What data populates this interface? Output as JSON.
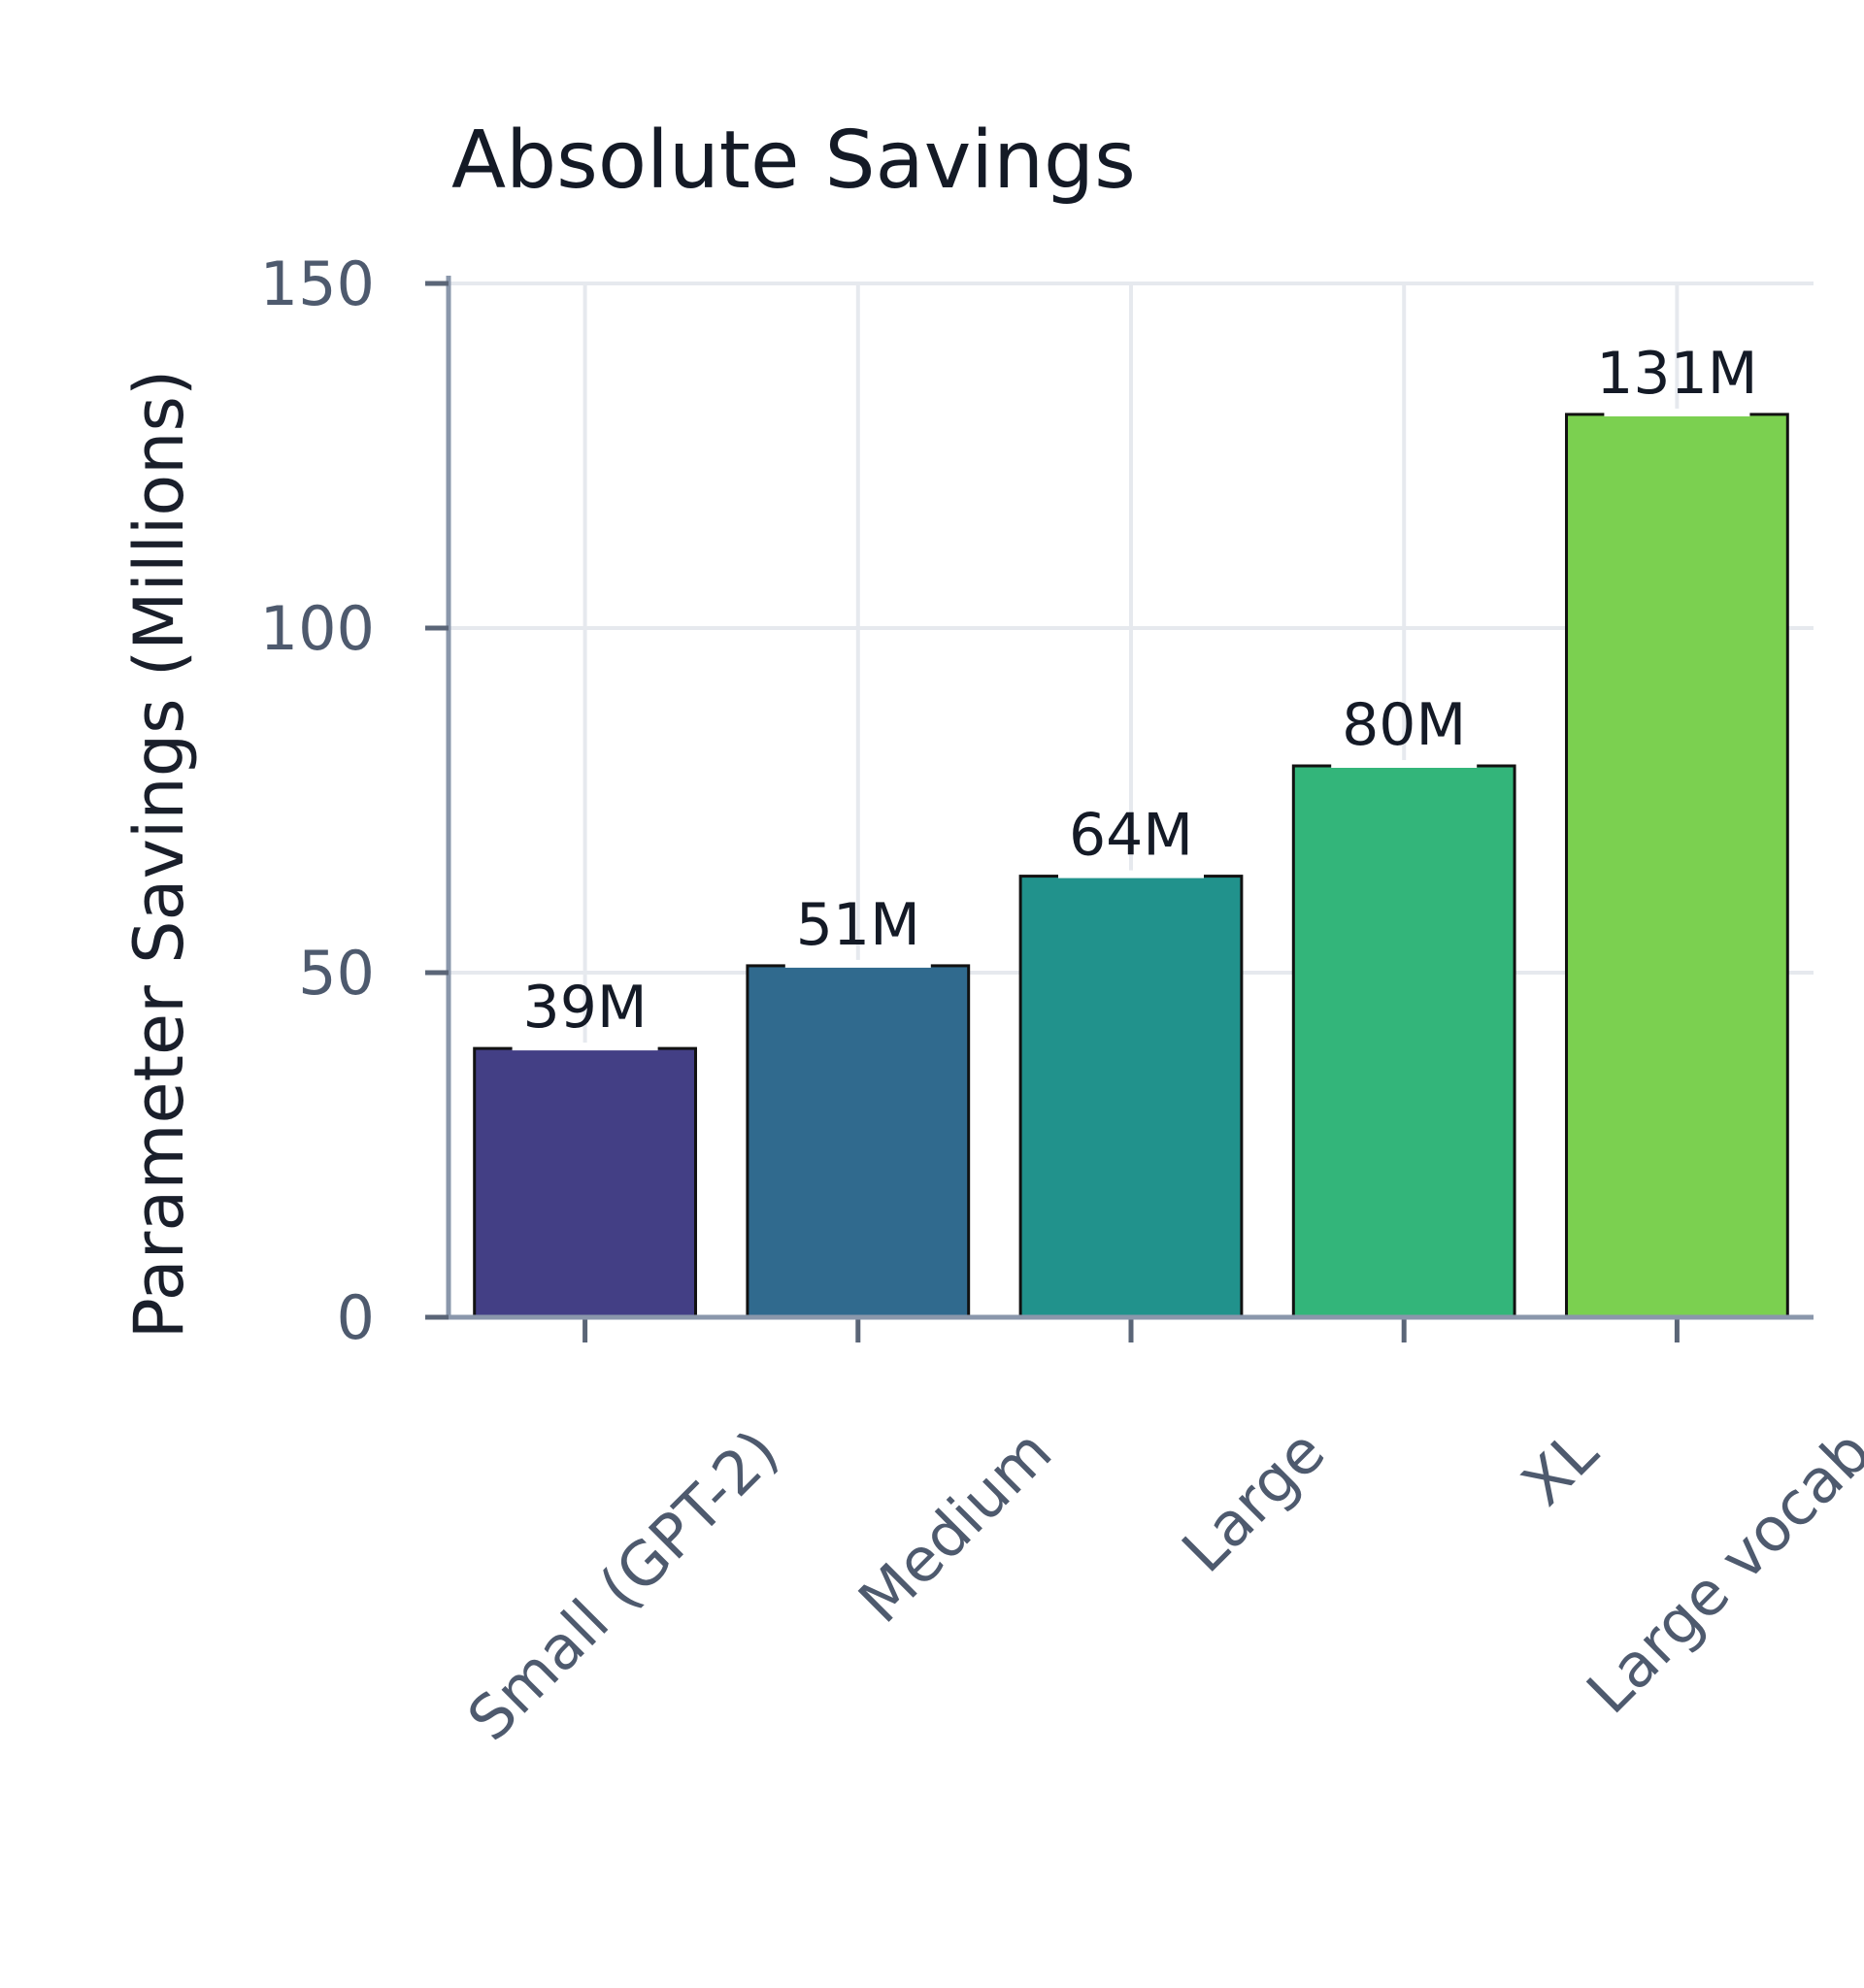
{
  "chart_data": {
    "type": "bar",
    "title": "Absolute Savings",
    "xlabel": "",
    "ylabel": "Parameter Savings (Millions)",
    "categories": [
      "Small (GPT-2)",
      "Medium",
      "Large",
      "XL",
      "Large vocab"
    ],
    "values": [
      39,
      51,
      64,
      80,
      131
    ],
    "data_labels": [
      "39M",
      "51M",
      "64M",
      "80M",
      "131M"
    ],
    "yticks": [
      0,
      50,
      100,
      150
    ],
    "ylim": [
      0,
      150
    ],
    "grid": true,
    "colors": [
      "#433f85",
      "#306a8e",
      "#21928c",
      "#33b57a",
      "#7bd050"
    ]
  }
}
